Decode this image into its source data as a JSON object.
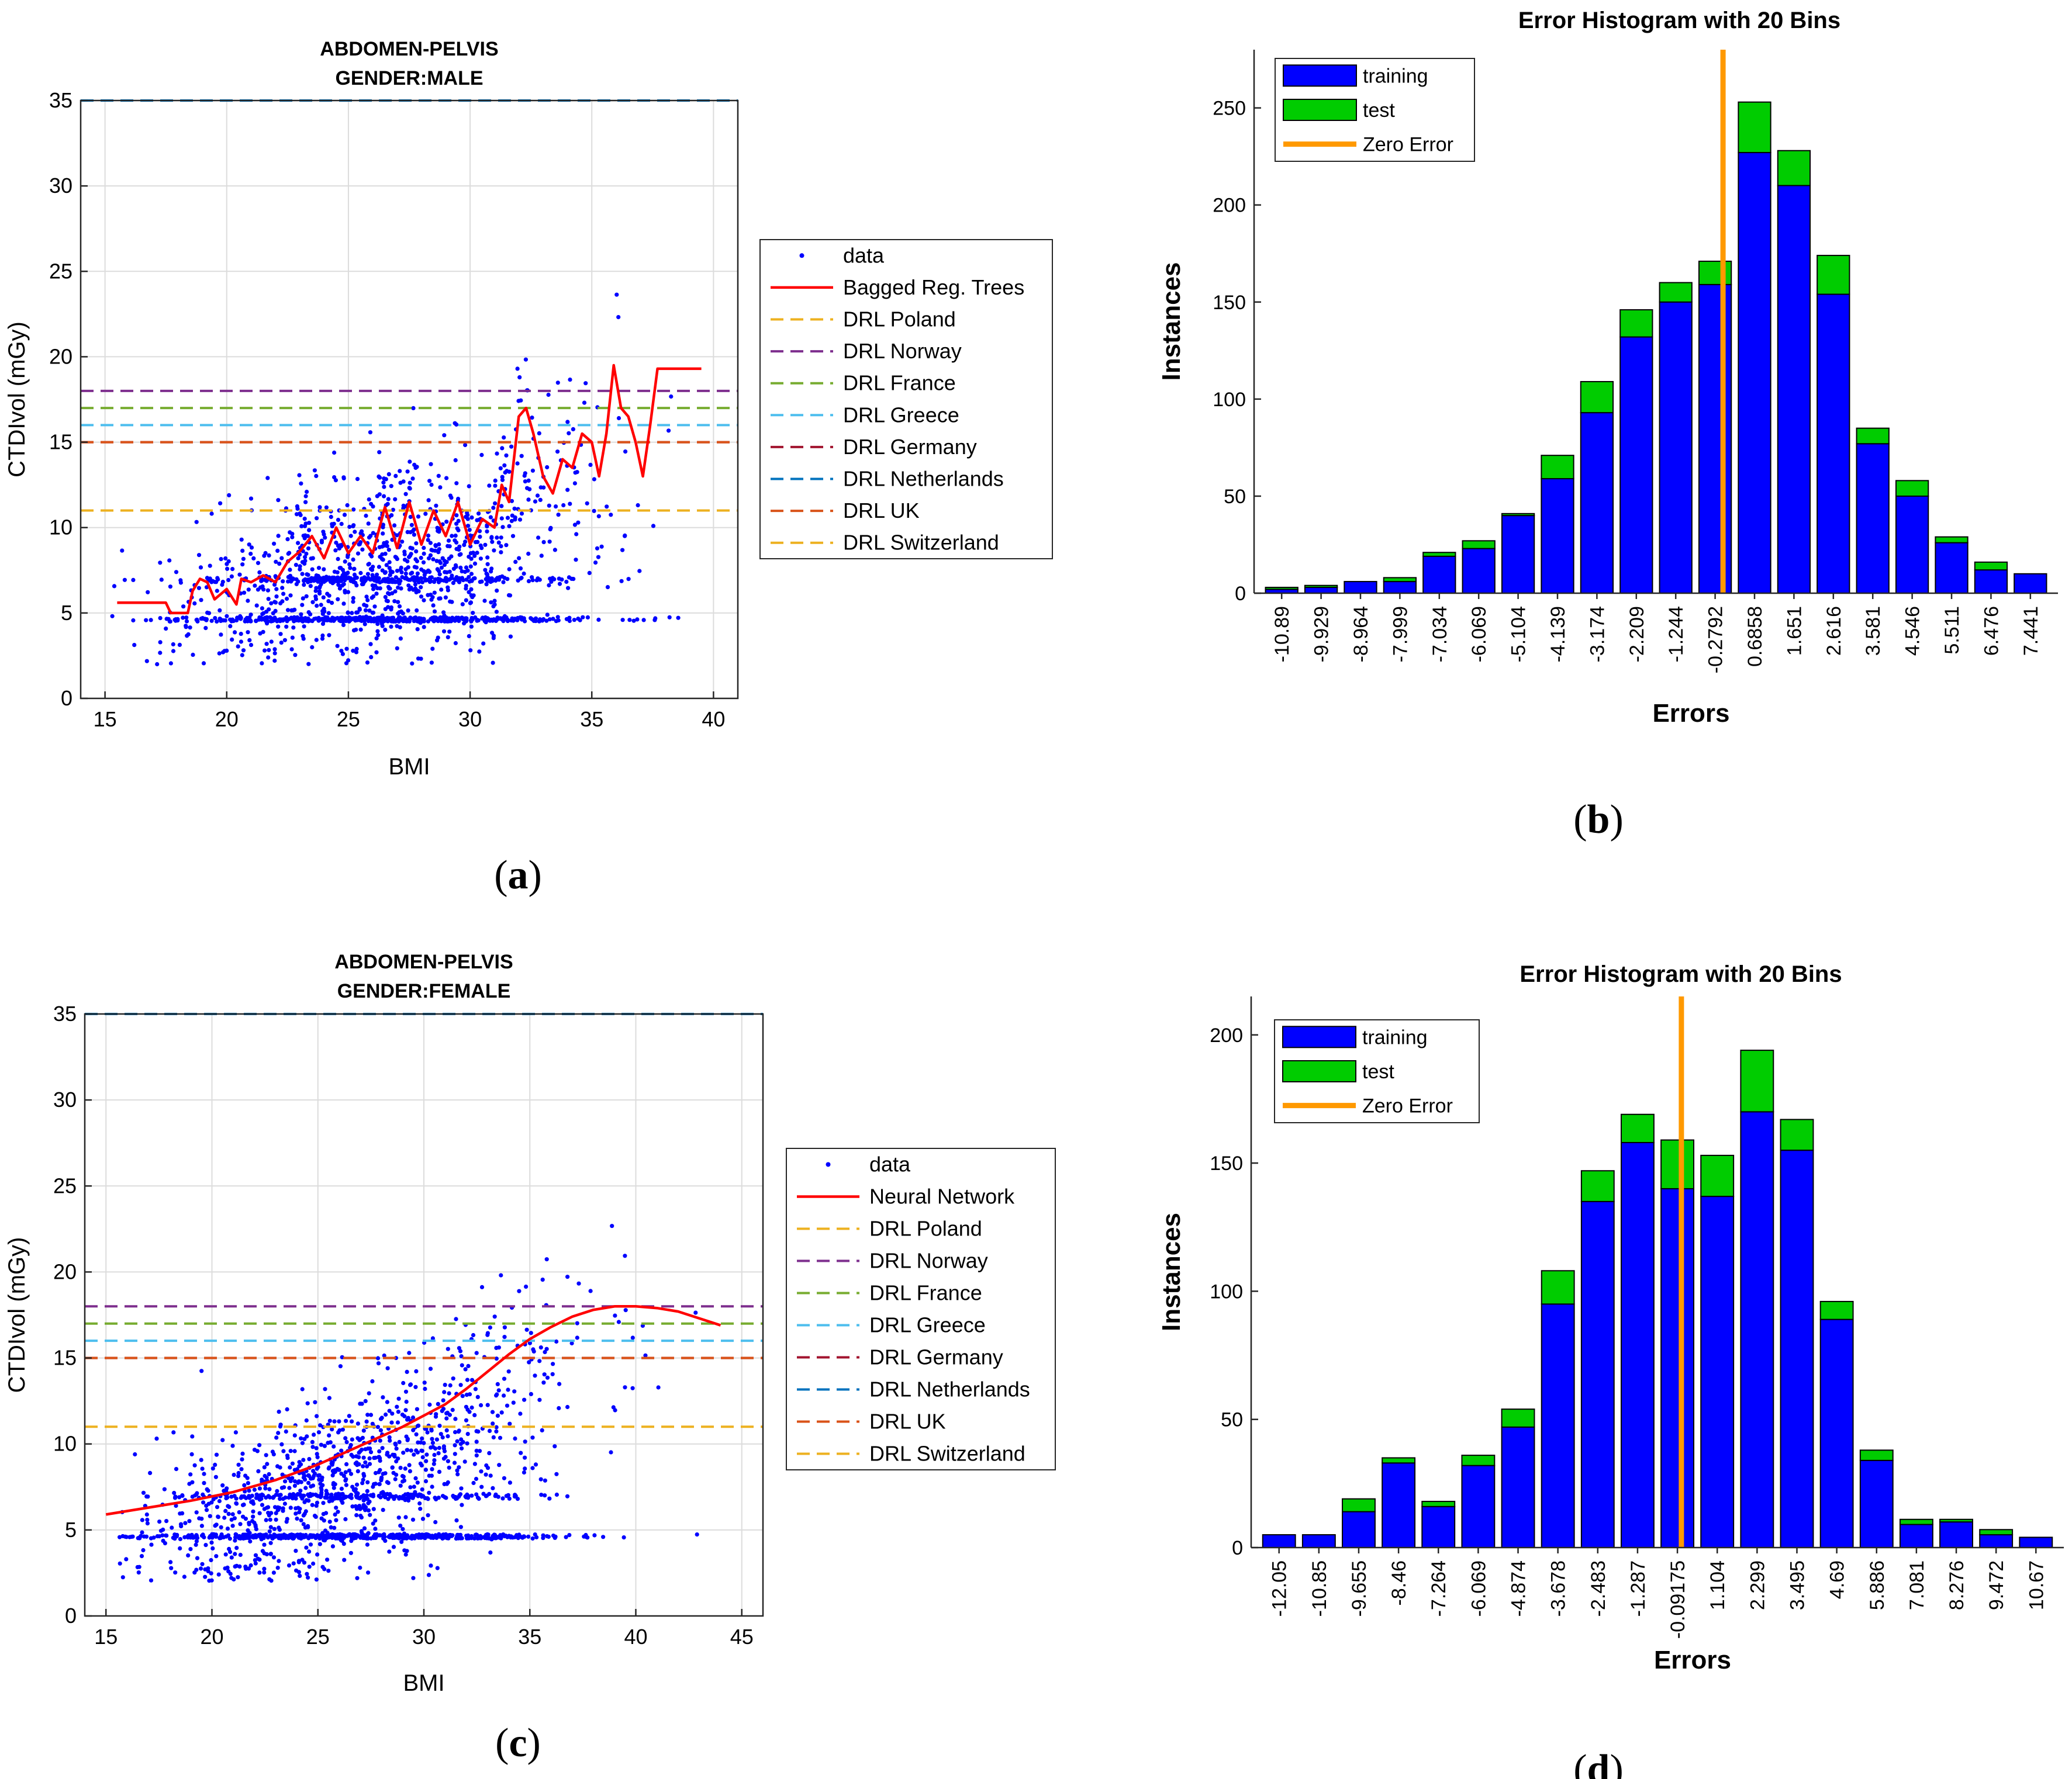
{
  "chart_data": [
    {
      "id": "a",
      "type": "scatter",
      "panel_label": [
        "(",
        "a",
        ")"
      ],
      "title": [
        "ABDOMEN-PELVIS",
        "GENDER:MALE"
      ],
      "xlabel": "BMI",
      "ylabel": "CTDIvol (mGy)",
      "xlim": [
        14,
        41
      ],
      "ylim": [
        0,
        35
      ],
      "xticks": [
        15,
        20,
        25,
        30,
        35,
        40
      ],
      "yticks": [
        0,
        5,
        10,
        15,
        20,
        25,
        30,
        35
      ],
      "grid": true,
      "legend_position": "outside-right",
      "legend": [
        "data",
        "Bagged Reg. Trees",
        "DRL Poland",
        "DRL Norway",
        "DRL France",
        "DRL Greece",
        "DRL Germany",
        "DRL Netherlands",
        "DRL UK",
        "DRL Switzerland"
      ],
      "colors": {
        "data": "#0000ff",
        "fit": "#ff0000",
        "Poland": "#edb120",
        "Norway": "#7e2f8e",
        "France": "#77ac30",
        "Greece": "#4dbeee",
        "Germany": "#a2142f",
        "Netherlands": "#0072bd",
        "UK": "#d95319",
        "Switzerland": "#edb120"
      },
      "drl_values": {
        "Poland": 35,
        "Norway": 18,
        "France": 17,
        "Greece": 16,
        "Germany": 15,
        "Netherlands": 35,
        "UK": 15,
        "Switzerland": 11
      },
      "fit_curve": {
        "name": "Bagged Reg. Trees",
        "x": [
          15.5,
          17.5,
          17.7,
          18.4,
          18.6,
          18.9,
          19.2,
          19.5,
          20.0,
          20.4,
          20.6,
          21.0,
          21.5,
          22.0,
          22.5,
          23.0,
          23.5,
          24.0,
          24.5,
          25.0,
          25.5,
          26.0,
          26.5,
          27.0,
          27.5,
          28.0,
          28.5,
          29.0,
          29.5,
          30.0,
          30.5,
          31.0,
          31.3,
          31.6,
          32.0,
          32.3,
          32.6,
          33.0,
          33.4,
          33.8,
          34.2,
          34.6,
          35.0,
          35.3,
          35.6,
          35.9,
          36.2,
          36.5,
          36.8,
          37.1,
          37.4,
          37.7,
          38.0,
          39.5
        ],
        "y": [
          5.6,
          5.6,
          5.0,
          5.0,
          6.3,
          7.0,
          6.8,
          5.8,
          6.4,
          5.5,
          7.0,
          6.8,
          7.2,
          6.8,
          8.0,
          8.6,
          9.5,
          8.2,
          10.0,
          8.5,
          9.5,
          8.5,
          11.2,
          8.8,
          11.5,
          9.0,
          11.0,
          9.5,
          11.5,
          9.0,
          10.5,
          10.0,
          12.5,
          11.5,
          16.5,
          17.0,
          15.5,
          13.0,
          12.0,
          14.0,
          13.5,
          15.5,
          15.0,
          13.0,
          15.5,
          19.5,
          17.0,
          16.5,
          15.0,
          13.0,
          16.0,
          19.3,
          19.3,
          19.3
        ]
      },
      "scatter": {
        "name": "data",
        "n": 1700,
        "x_center": 26.5,
        "x_spread": 4.2,
        "x_range": [
          15.2,
          39.5
        ],
        "y_floor": 4.5
      }
    },
    {
      "id": "b",
      "type": "bar",
      "panel_label": [
        "(",
        "b",
        ")"
      ],
      "title": "Error Histogram with 20 Bins",
      "xlabel": "Errors",
      "ylabel": "Instances",
      "ylim": [
        0,
        280
      ],
      "yticks": [
        0,
        50,
        100,
        150,
        200,
        250
      ],
      "grid": false,
      "legend_position": "top-left",
      "legend": [
        "training",
        "test",
        "Zero Error"
      ],
      "colors": {
        "training": "#0000ff",
        "test": "#00cc00",
        "zero": "#ff9900"
      },
      "categories": [
        "-10.89",
        "-9.929",
        "-8.964",
        "-7.999",
        "-7.034",
        "-6.069",
        "-5.104",
        "-4.139",
        "-3.174",
        "-2.209",
        "-1.244",
        "-0.2792",
        "0.6858",
        "1.651",
        "2.616",
        "3.581",
        "4.546",
        "5.511",
        "6.476",
        "7.441"
      ],
      "series": [
        {
          "name": "training",
          "values": [
            2,
            3,
            6,
            6,
            19,
            23,
            40,
            59,
            93,
            132,
            150,
            159,
            227,
            210,
            154,
            77,
            50,
            26,
            12,
            10
          ]
        },
        {
          "name": "test",
          "values": [
            1,
            1,
            0,
            2,
            2,
            4,
            1,
            12,
            16,
            14,
            10,
            12,
            26,
            18,
            20,
            8,
            8,
            3,
            4,
            0
          ]
        }
      ],
      "zero_error_position": 11.2
    },
    {
      "id": "c",
      "type": "scatter",
      "panel_label": [
        "(",
        "c",
        ")"
      ],
      "title": [
        "ABDOMEN-PELVIS",
        "GENDER:FEMALE"
      ],
      "xlabel": "BMI",
      "ylabel": "CTDIvol (mGy)",
      "xlim": [
        14,
        46
      ],
      "ylim": [
        0,
        35
      ],
      "xticks": [
        15,
        20,
        25,
        30,
        35,
        40,
        45
      ],
      "yticks": [
        0,
        5,
        10,
        15,
        20,
        25,
        30,
        35
      ],
      "grid": true,
      "legend_position": "outside-right",
      "legend": [
        "data",
        "Neural Network",
        "DRL Poland",
        "DRL Norway",
        "DRL France",
        "DRL Greece",
        "DRL Germany",
        "DRL Netherlands",
        "DRL UK",
        "DRL Switzerland"
      ],
      "colors": {
        "data": "#0000ff",
        "fit": "#ff0000",
        "Poland": "#edb120",
        "Norway": "#7e2f8e",
        "France": "#77ac30",
        "Greece": "#4dbeee",
        "Germany": "#a2142f",
        "Netherlands": "#0072bd",
        "UK": "#d95319",
        "Switzerland": "#edb120"
      },
      "drl_values": {
        "Poland": 35,
        "Norway": 18,
        "France": 17,
        "Greece": 16,
        "Germany": 15,
        "Netherlands": 35,
        "UK": 15,
        "Switzerland": 11
      },
      "fit_curve": {
        "name": "Neural Network",
        "x": [
          15,
          17,
          19,
          21,
          23,
          25,
          27,
          29,
          31,
          32,
          33,
          34,
          35,
          36,
          37,
          38,
          39,
          40,
          41,
          42,
          43,
          44
        ],
        "y": [
          5.9,
          6.3,
          6.7,
          7.2,
          7.9,
          8.8,
          9.9,
          11.0,
          12.3,
          13.2,
          14.2,
          15.2,
          16.1,
          16.8,
          17.4,
          17.8,
          18.0,
          18.0,
          17.9,
          17.7,
          17.3,
          16.9
        ]
      },
      "scatter": {
        "name": "data",
        "n": 1700,
        "x_center": 26.5,
        "x_spread": 5.0,
        "x_range": [
          15.5,
          44.5
        ],
        "y_floor": 4.5
      }
    },
    {
      "id": "d",
      "type": "bar",
      "panel_label": [
        "(",
        "d",
        ")"
      ],
      "title": "Error Histogram with 20 Bins",
      "xlabel": "Errors",
      "ylabel": "Instances",
      "ylim": [
        0,
        215
      ],
      "yticks": [
        0,
        50,
        100,
        150,
        200
      ],
      "grid": false,
      "legend_position": "top-left",
      "legend": [
        "training",
        "test",
        "Zero Error"
      ],
      "colors": {
        "training": "#0000ff",
        "test": "#00cc00",
        "zero": "#ff9900"
      },
      "categories": [
        "-12.05",
        "-10.85",
        "-9.655",
        "-8.46",
        "-7.264",
        "-6.069",
        "-4.874",
        "-3.678",
        "-2.483",
        "-1.287",
        "-0.09175",
        "1.104",
        "2.299",
        "3.495",
        "4.69",
        "5.886",
        "7.081",
        "8.276",
        "9.472",
        "10.67"
      ],
      "series": [
        {
          "name": "training",
          "values": [
            5,
            5,
            14,
            33,
            16,
            32,
            47,
            95,
            135,
            158,
            140,
            137,
            170,
            155,
            89,
            34,
            9,
            10,
            5,
            4
          ]
        },
        {
          "name": "test",
          "values": [
            0,
            0,
            5,
            2,
            2,
            4,
            7,
            13,
            12,
            11,
            19,
            16,
            24,
            12,
            7,
            4,
            2,
            1,
            2,
            0
          ]
        }
      ],
      "zero_error_position": 10.1
    }
  ]
}
